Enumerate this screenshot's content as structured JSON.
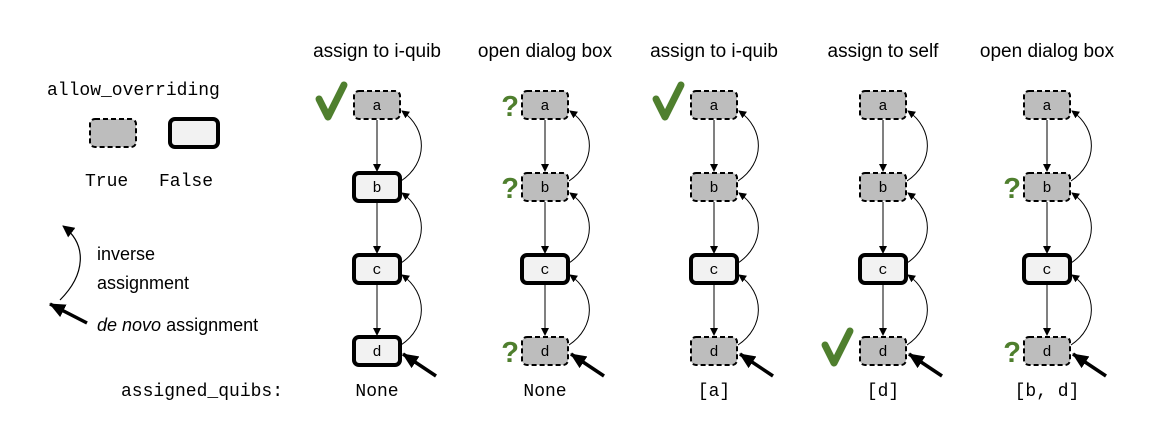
{
  "legend": {
    "override_title": "allow_overriding",
    "true_label": "True",
    "false_label": "False",
    "inverse_label_line1": "inverse",
    "inverse_label_line2": "assignment",
    "denovo_italic": "de novo",
    "denovo_rest": " assignment",
    "assigned_label": "assigned_quibs:"
  },
  "colors": {
    "check": "#4f7f2e",
    "question": "#4f7f2e",
    "node_true_fill": "#bdbdbd",
    "node_false_fill": "#f2f2f2"
  },
  "columns": [
    {
      "title": "assign to i-quib",
      "result": "None",
      "nodes": [
        {
          "label": "a",
          "overriding": true,
          "mark": "check"
        },
        {
          "label": "b",
          "overriding": false,
          "mark": ""
        },
        {
          "label": "c",
          "overriding": false,
          "mark": ""
        },
        {
          "label": "d",
          "overriding": false,
          "mark": ""
        }
      ]
    },
    {
      "title": "open dialog box",
      "result": "None",
      "nodes": [
        {
          "label": "a",
          "overriding": true,
          "mark": "question"
        },
        {
          "label": "b",
          "overriding": true,
          "mark": "question"
        },
        {
          "label": "c",
          "overriding": false,
          "mark": ""
        },
        {
          "label": "d",
          "overriding": true,
          "mark": "question"
        }
      ]
    },
    {
      "title": "assign to i-quib",
      "result": "[a]",
      "nodes": [
        {
          "label": "a",
          "overriding": true,
          "mark": "check"
        },
        {
          "label": "b",
          "overriding": true,
          "mark": ""
        },
        {
          "label": "c",
          "overriding": false,
          "mark": ""
        },
        {
          "label": "d",
          "overriding": true,
          "mark": ""
        }
      ]
    },
    {
      "title": "assign to self",
      "result": "[d]",
      "nodes": [
        {
          "label": "a",
          "overriding": true,
          "mark": ""
        },
        {
          "label": "b",
          "overriding": true,
          "mark": ""
        },
        {
          "label": "c",
          "overriding": false,
          "mark": ""
        },
        {
          "label": "d",
          "overriding": true,
          "mark": "check"
        }
      ]
    },
    {
      "title": "open dialog box",
      "result": "[b, d]",
      "nodes": [
        {
          "label": "a",
          "overriding": true,
          "mark": ""
        },
        {
          "label": "b",
          "overriding": true,
          "mark": "question"
        },
        {
          "label": "c",
          "overriding": false,
          "mark": ""
        },
        {
          "label": "d",
          "overriding": true,
          "mark": "question"
        }
      ]
    }
  ]
}
